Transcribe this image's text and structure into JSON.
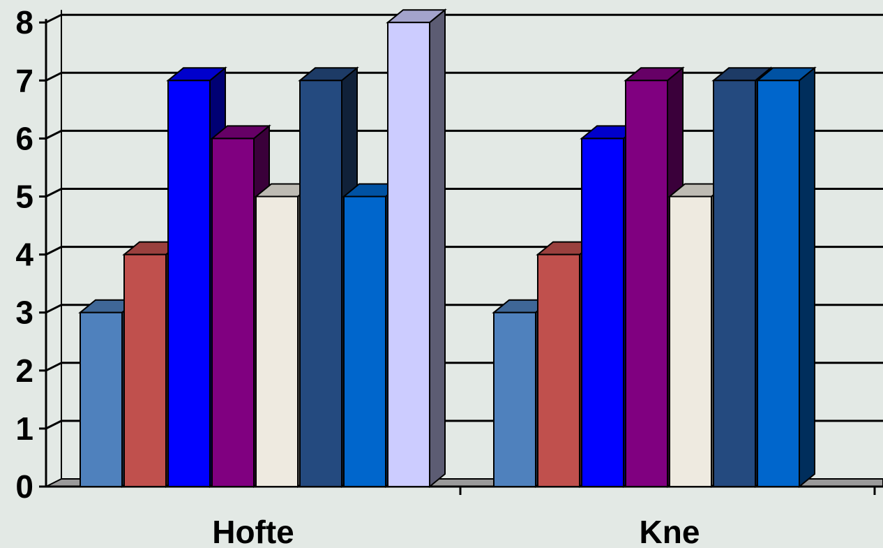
{
  "chart_data": {
    "type": "bar",
    "style": "3d-clustered-column",
    "categories": [
      "Hofte",
      "Kne"
    ],
    "series": [
      {
        "values": [
          3,
          3
        ],
        "color": "#4f81bd"
      },
      {
        "values": [
          4,
          4
        ],
        "color": "#c0504d"
      },
      {
        "values": [
          7,
          6
        ],
        "color": "#0000ff"
      },
      {
        "values": [
          6,
          7
        ],
        "color": "#800080"
      },
      {
        "values": [
          5,
          5
        ],
        "color": "#eeeae0"
      },
      {
        "values": [
          7,
          7
        ],
        "color": "#244a7f"
      },
      {
        "values": [
          5,
          7
        ],
        "color": "#0066cc"
      },
      {
        "values": [
          8,
          null
        ],
        "color": "#ccccff"
      }
    ],
    "yticks": [
      "0",
      "1",
      "2",
      "3",
      "4",
      "5",
      "6",
      "7",
      "8"
    ],
    "ylim": [
      0,
      8
    ],
    "grid": true,
    "legend": "none",
    "title": "",
    "xlabel": "",
    "ylabel": ""
  }
}
